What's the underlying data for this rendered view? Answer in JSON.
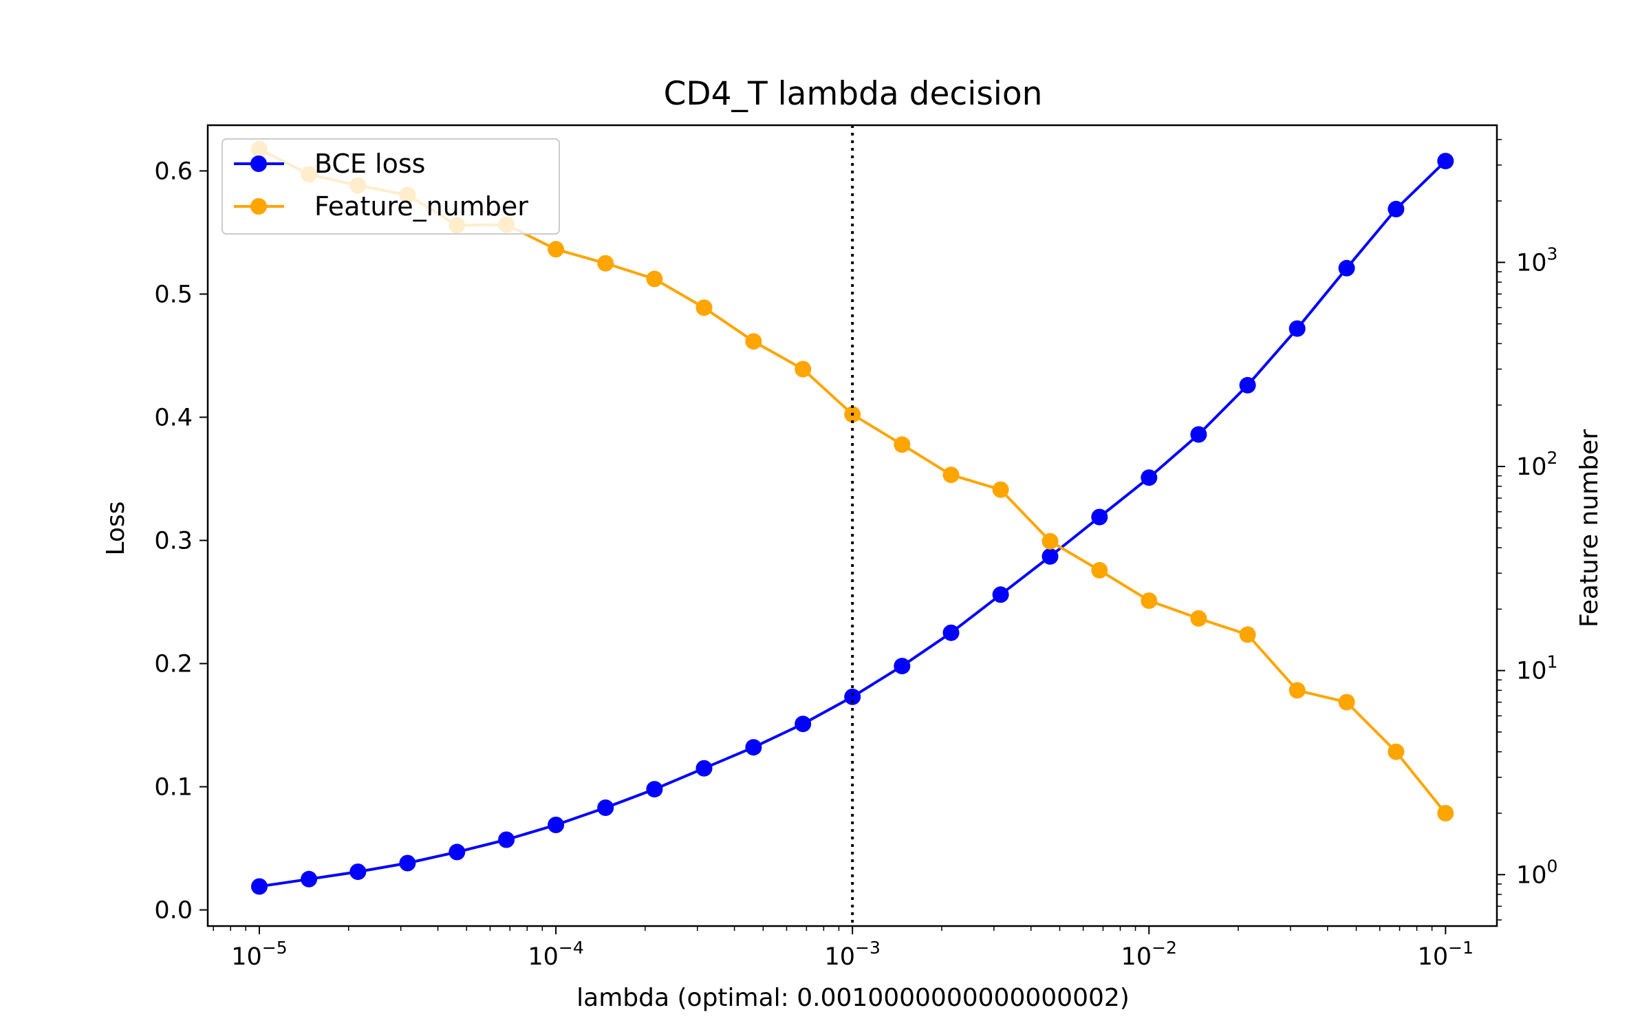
{
  "chart_data": {
    "type": "line",
    "title": "CD4_T lambda decision",
    "xlabel": "lambda (optimal: 0.0010000000000000002)",
    "ylabel_left": "Loss",
    "ylabel_right": "Feature number",
    "x_scale": "log",
    "xlim": [
      6.7e-06,
      0.149
    ],
    "ylim_left": [
      -0.0131,
      0.6371
    ],
    "ylim_right": [
      0.56,
      4700
    ],
    "y_right_scale": "log",
    "grid": false,
    "legend_position": "top-left",
    "x_ticks": [
      {
        "base": "10",
        "exp": "−5",
        "value": 1e-05
      },
      {
        "base": "10",
        "exp": "−4",
        "value": 0.0001
      },
      {
        "base": "10",
        "exp": "−3",
        "value": 0.001
      },
      {
        "base": "10",
        "exp": "−2",
        "value": 0.01
      },
      {
        "base": "10",
        "exp": "−1",
        "value": 0.1
      }
    ],
    "y_left_ticks": [
      {
        "label": "0.0",
        "value": 0.0
      },
      {
        "label": "0.1",
        "value": 0.1
      },
      {
        "label": "0.2",
        "value": 0.2
      },
      {
        "label": "0.3",
        "value": 0.3
      },
      {
        "label": "0.4",
        "value": 0.4
      },
      {
        "label": "0.5",
        "value": 0.5
      },
      {
        "label": "0.6",
        "value": 0.6
      }
    ],
    "y_right_ticks": [
      {
        "base": "10",
        "exp": "0",
        "value": 1
      },
      {
        "base": "10",
        "exp": "1",
        "value": 10
      },
      {
        "base": "10",
        "exp": "2",
        "value": 100
      },
      {
        "base": "10",
        "exp": "3",
        "value": 1000
      }
    ],
    "vertical_line": {
      "x": 0.001,
      "style": "dotted",
      "color": "#000000"
    },
    "x": [
      1e-05,
      1.47e-05,
      2.15e-05,
      3.16e-05,
      4.64e-05,
      6.81e-05,
      0.0001,
      0.000147,
      0.000215,
      0.000316,
      0.000464,
      0.000681,
      0.001,
      0.00147,
      0.00215,
      0.00316,
      0.00464,
      0.00681,
      0.01,
      0.0147,
      0.0215,
      0.0316,
      0.0464,
      0.0681,
      0.1
    ],
    "series": [
      {
        "name": "BCE loss",
        "axis": "left",
        "color": "#0000ff",
        "marker": "circle",
        "values": [
          0.019,
          0.025,
          0.031,
          0.038,
          0.047,
          0.057,
          0.069,
          0.083,
          0.098,
          0.115,
          0.132,
          0.151,
          0.173,
          0.198,
          0.225,
          0.256,
          0.287,
          0.319,
          0.351,
          0.386,
          0.426,
          0.472,
          0.521,
          0.569,
          0.608
        ]
      },
      {
        "name": "Feature_number",
        "axis": "right",
        "color": "#ffa500",
        "marker": "circle",
        "values": [
          3590,
          2700,
          2380,
          2140,
          1520,
          1530,
          1160,
          990,
          830,
          600,
          410,
          300,
          180,
          128,
          91,
          77,
          43,
          31,
          22,
          18,
          15,
          8,
          7,
          4,
          2
        ]
      }
    ]
  }
}
